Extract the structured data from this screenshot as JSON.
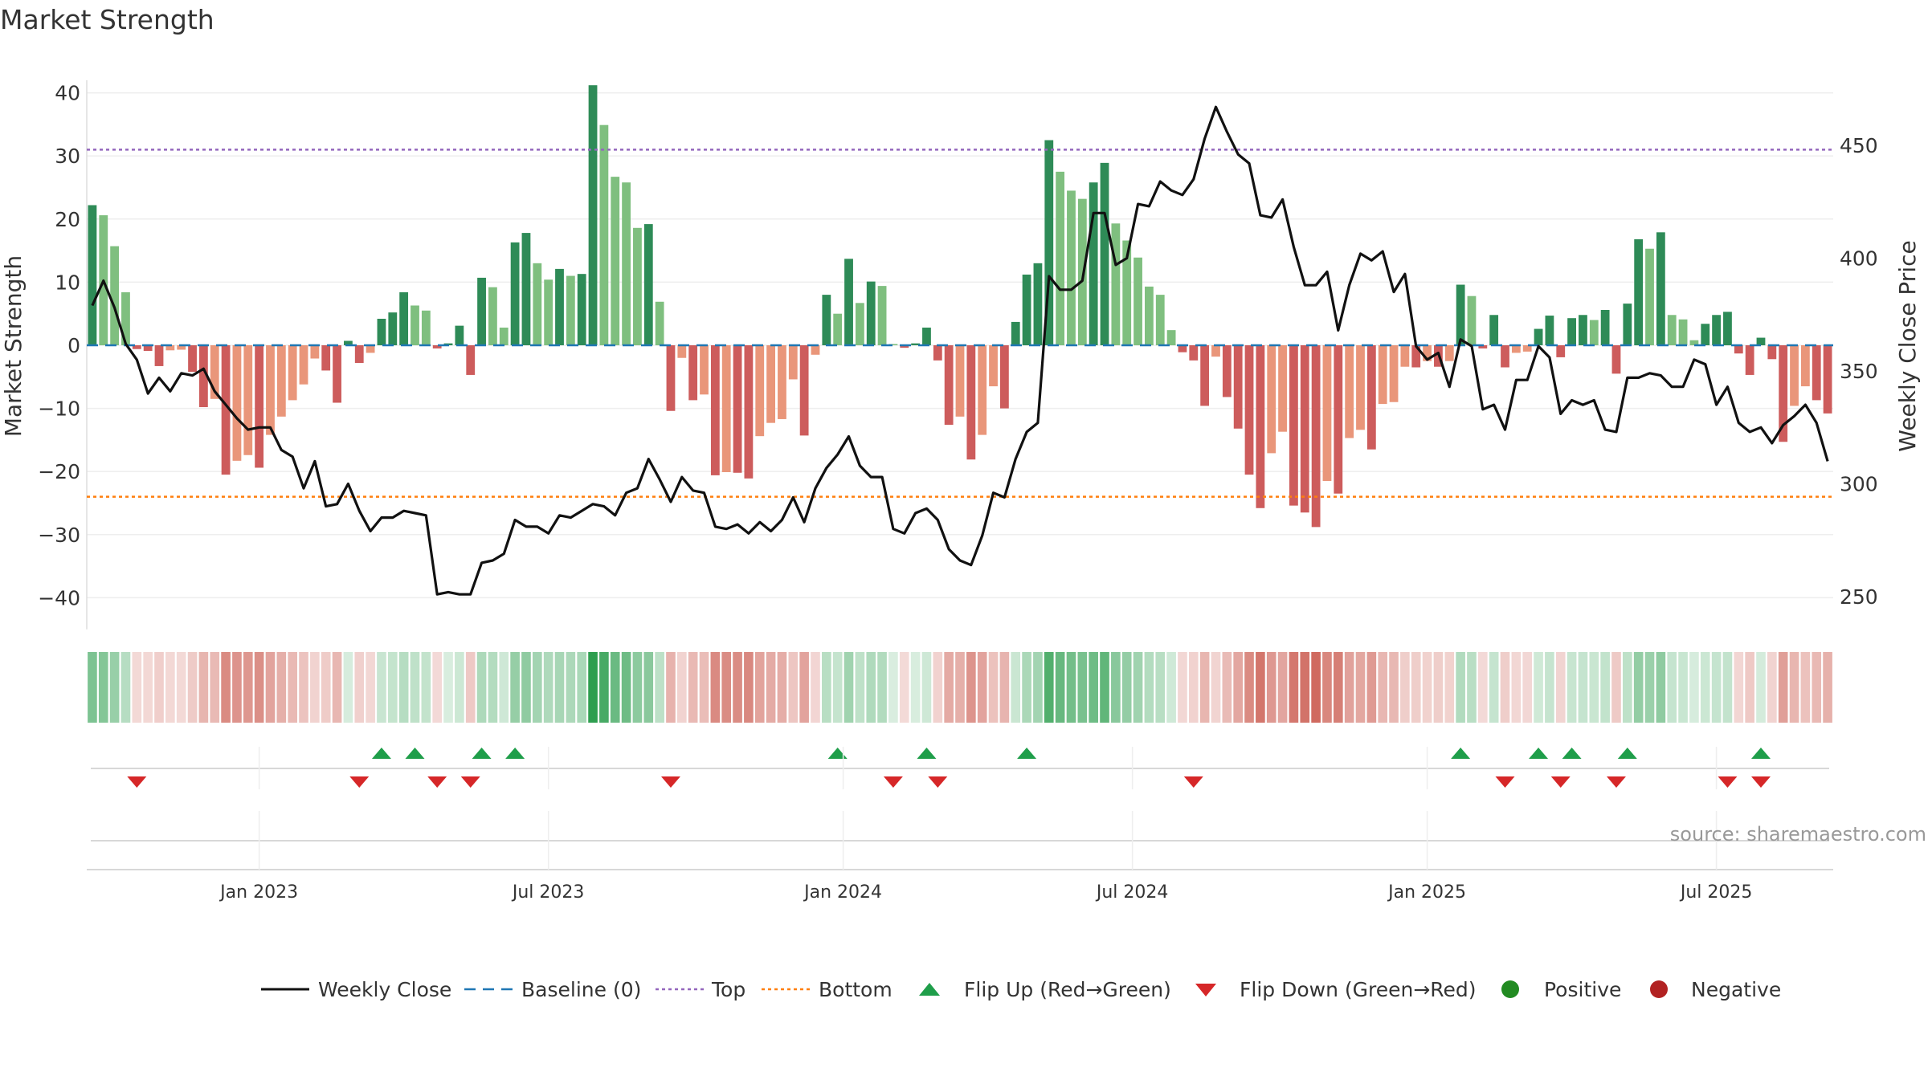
{
  "chart_data": {
    "type": "bar",
    "title": "Market Strength",
    "ylabel": "Market Strength",
    "y2label": "Weekly Close Price",
    "ylim": [
      -45,
      42
    ],
    "y2lim": [
      236,
      476
    ],
    "yticks": [
      40,
      30,
      20,
      10,
      0,
      -10,
      -20,
      -30,
      -40
    ],
    "ytick_labels": [
      "40",
      "30",
      "20",
      "10",
      "0",
      "−10",
      "−20",
      "−30",
      "−40"
    ],
    "y2ticks": [
      450,
      400,
      350,
      300,
      250
    ],
    "y2tick_labels": [
      "450",
      "400",
      "350",
      "300",
      "250"
    ],
    "xtick_labels": [
      "Jan 2023",
      "Jul 2023",
      "Jan 2024",
      "Jul 2024",
      "Jan 2025",
      "Jul 2025"
    ],
    "xtick_weeks": [
      15,
      41,
      67.5,
      93.5,
      120,
      146
    ],
    "top_line": 31,
    "bottom_line": -24,
    "source": "source: sharemaestro.com",
    "legend": [
      "Weekly Close",
      "Baseline (0)",
      "Top",
      "Bottom",
      "Flip Up (Red→Green)",
      "Flip Down (Green→Red)",
      "Positive",
      "Negative"
    ],
    "colors": {
      "pos_dark": "#2e8b57",
      "pos_light": "#7fbf7f",
      "neg_dark": "#cd5c5c",
      "neg_light": "#e9967a",
      "close": "#111111",
      "baseline": "#1f77b4",
      "top": "#9467bd",
      "bottom": "#ff7f0e",
      "flip_up": "#1f9e4a",
      "flip_down": "#d62728",
      "positive": "#228b22",
      "negative": "#b22222"
    },
    "strength": [
      22.2,
      20.6,
      15.7,
      8.4,
      -0.6,
      -0.9,
      -3.3,
      -0.8,
      -0.7,
      -4.2,
      -9.8,
      -8.5,
      -20.5,
      -18.3,
      -17.4,
      -19.4,
      -14.2,
      -11.3,
      -8.7,
      -6.2,
      -2.1,
      -4.0,
      -9.1,
      0.7,
      -2.8,
      -1.2,
      4.2,
      5.2,
      8.4,
      6.3,
      5.5,
      -0.5,
      0.3,
      3.1,
      -4.7,
      10.7,
      9.2,
      2.8,
      16.3,
      17.8,
      13.0,
      10.4,
      12.1,
      11.0,
      11.3,
      41.2,
      34.9,
      26.7,
      25.8,
      18.6,
      19.2,
      6.9,
      -10.4,
      -2.0,
      -8.7,
      -7.8,
      -20.6,
      -20.1,
      -20.2,
      -21.1,
      -14.4,
      -12.3,
      -11.7,
      -5.4,
      -14.3,
      -1.5,
      8.0,
      5.0,
      13.7,
      6.7,
      10.1,
      9.4,
      0.2,
      -0.4,
      0.3,
      2.8,
      -2.4,
      -12.6,
      -11.3,
      -18.1,
      -14.2,
      -6.5,
      -10.0,
      3.7,
      11.2,
      13.0,
      32.5,
      27.5,
      24.5,
      23.2,
      25.8,
      28.9,
      19.3,
      16.6,
      13.9,
      9.3,
      8.0,
      2.4,
      -1.1,
      -2.4,
      -9.6,
      -1.8,
      -8.2,
      -13.2,
      -20.5,
      -25.8,
      -17.1,
      -13.7,
      -25.4,
      -26.5,
      -28.8,
      -21.5,
      -23.5,
      -14.7,
      -13.4,
      -16.5,
      -9.3,
      -9.0,
      -3.4,
      -3.5,
      -2.5,
      -3.4,
      -2.5,
      9.6,
      7.8,
      -0.5,
      4.8,
      -3.5,
      -1.2,
      -1.0,
      2.6,
      4.7,
      -1.9,
      4.3,
      4.8,
      4.0,
      5.6,
      -4.5,
      6.6,
      16.8,
      15.3,
      17.9,
      4.8,
      4.1,
      0.8,
      3.4,
      4.8,
      5.3,
      -1.3,
      -4.7,
      1.2,
      -2.2,
      -15.3,
      -9.6,
      -6.5,
      -8.7,
      -10.8
    ],
    "close": [
      379,
      390,
      378,
      362,
      355,
      340,
      347,
      341,
      349,
      348,
      351,
      341,
      335,
      329,
      324,
      325,
      325,
      315,
      312,
      298,
      310,
      290,
      291,
      300,
      288,
      279,
      285,
      285,
      288,
      287,
      286,
      251,
      252,
      251,
      251,
      265,
      266,
      269,
      284,
      281,
      281,
      278,
      286,
      285,
      288,
      291,
      290,
      286,
      296,
      298,
      311,
      302,
      292,
      303,
      297,
      296,
      281,
      280,
      282,
      278,
      283,
      279,
      284,
      294,
      283,
      298,
      307,
      313,
      321,
      308,
      303,
      303,
      280,
      278,
      287,
      289,
      284,
      271,
      266,
      264,
      277,
      296,
      294,
      311,
      323,
      327,
      392,
      386,
      386,
      390,
      420,
      420,
      397,
      400,
      424,
      423,
      434,
      430,
      428,
      435,
      453,
      467,
      456,
      446,
      442,
      419,
      418,
      426,
      405,
      388,
      388,
      394,
      368,
      388,
      402,
      399,
      403,
      385,
      393,
      361,
      355,
      358,
      343,
      364,
      361,
      333,
      335,
      324,
      346,
      346,
      361,
      356,
      331,
      337,
      335,
      337,
      324,
      323,
      347,
      347,
      349,
      348,
      343,
      343,
      355,
      353,
      335,
      343,
      327,
      323,
      325,
      318,
      326,
      330,
      335,
      327,
      310
    ],
    "flips_up": [
      26,
      29,
      35,
      38,
      67,
      75,
      84,
      123,
      130,
      133,
      138,
      150
    ],
    "flips_down": [
      4,
      24,
      31,
      34,
      52,
      72,
      76,
      99,
      127,
      132,
      137,
      147,
      150
    ]
  }
}
